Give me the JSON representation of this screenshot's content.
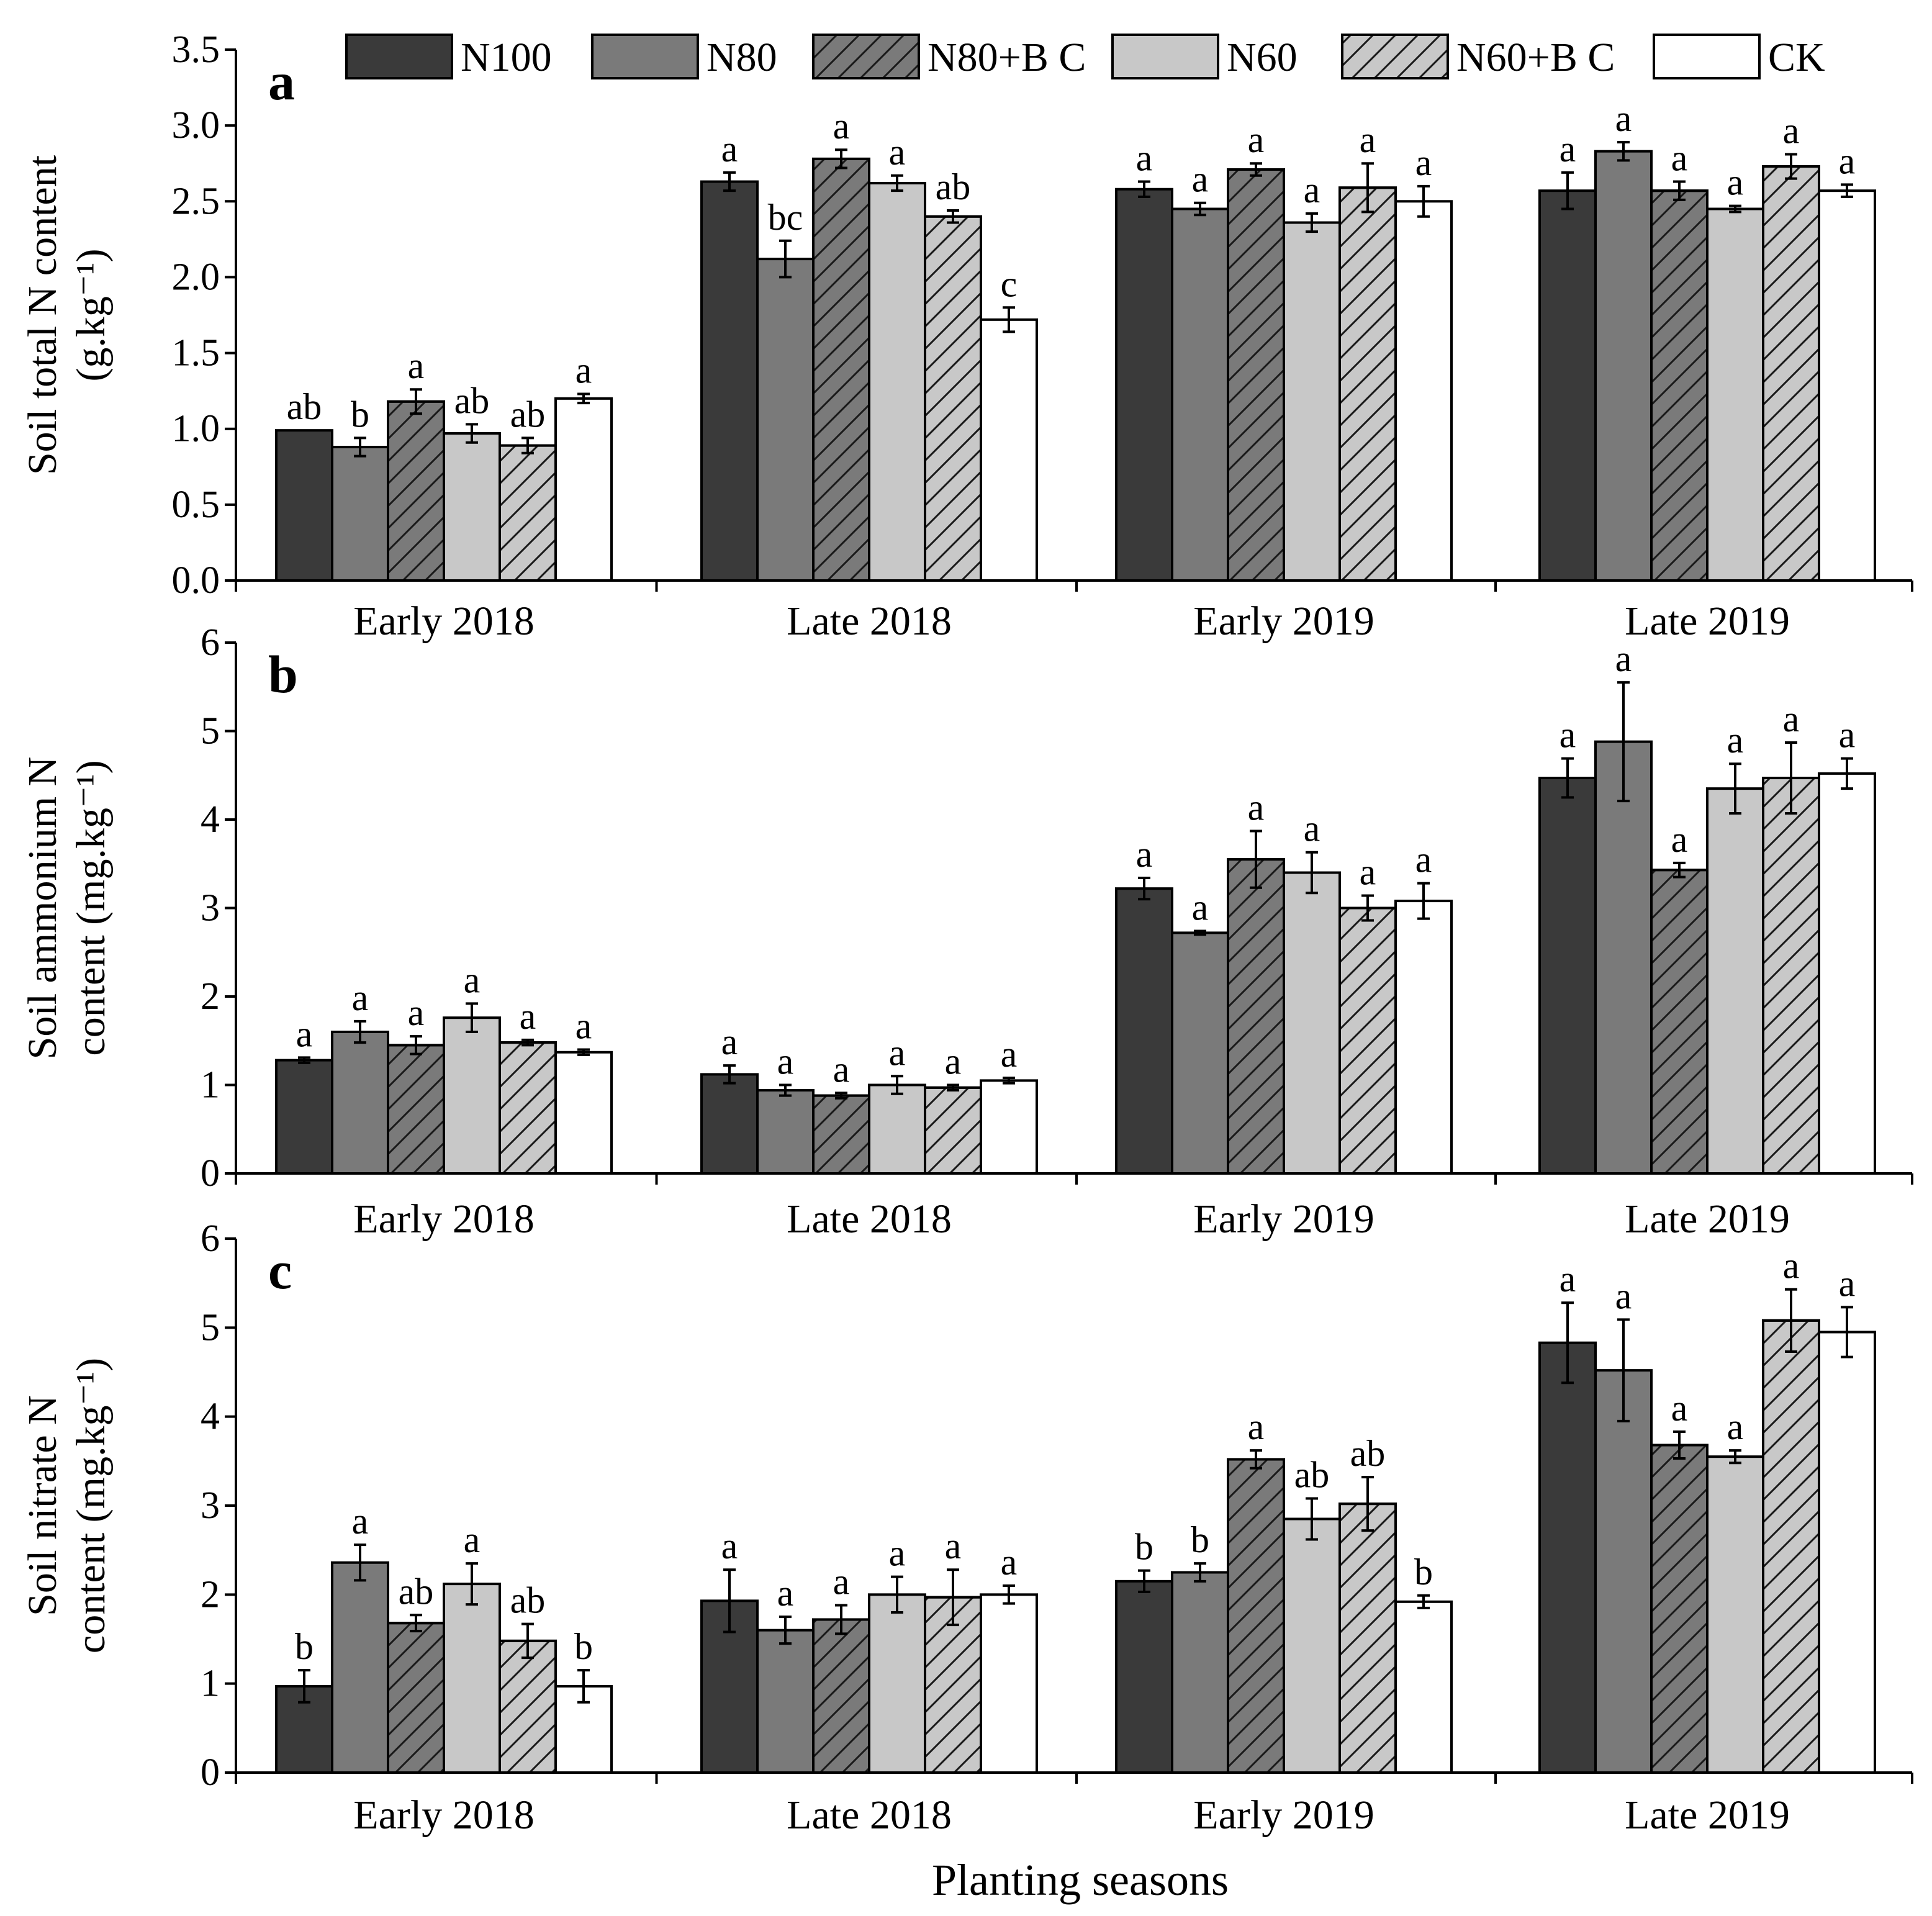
{
  "legend": [
    {
      "name": "N100",
      "fill": "#3a3a3a",
      "hatch": false
    },
    {
      "name": "N80",
      "fill": "#7a7a7a",
      "hatch": false
    },
    {
      "name": "N80+B C",
      "fill": "#7a7a7a",
      "hatch": true
    },
    {
      "name": "N60",
      "fill": "#c8c8c8",
      "hatch": false
    },
    {
      "name": "N60+B C",
      "fill": "#c8c8c8",
      "hatch": true
    },
    {
      "name": "CK",
      "fill": "#ffffff",
      "hatch": false
    }
  ],
  "xlabel": "Planting seasons",
  "chart_data": [
    {
      "type": "bar",
      "panel": "a",
      "ylabel": [
        "Soil total N content",
        "(g.kg⁻¹)"
      ],
      "ylim": [
        0,
        3.5
      ],
      "yticks": [
        "0.0",
        "0.5",
        "1.0",
        "1.5",
        "2.0",
        "2.5",
        "3.0",
        "3.5"
      ],
      "categories": [
        "Early 2018",
        "Late 2018",
        "Early 2019",
        "Late 2019"
      ],
      "series": [
        {
          "name": "N100",
          "values": [
            0.99,
            2.63,
            2.58,
            2.57
          ],
          "errors": [
            0.0,
            0.06,
            0.05,
            0.12
          ],
          "sig": [
            "ab",
            "a",
            "a",
            "a"
          ]
        },
        {
          "name": "N80",
          "values": [
            0.88,
            2.12,
            2.45,
            2.83
          ],
          "errors": [
            0.06,
            0.12,
            0.04,
            0.06
          ],
          "sig": [
            "b",
            "bc",
            "a",
            "a"
          ]
        },
        {
          "name": "N80+B C",
          "values": [
            1.18,
            2.78,
            2.71,
            2.57
          ],
          "errors": [
            0.08,
            0.06,
            0.04,
            0.06
          ],
          "sig": [
            "a",
            "a",
            "a",
            "a"
          ]
        },
        {
          "name": "N60",
          "values": [
            0.97,
            2.62,
            2.36,
            2.45
          ],
          "errors": [
            0.06,
            0.05,
            0.06,
            0.02
          ],
          "sig": [
            "ab",
            "a",
            "a",
            "a"
          ]
        },
        {
          "name": "N60+B C",
          "values": [
            0.89,
            2.4,
            2.59,
            2.73
          ],
          "errors": [
            0.05,
            0.04,
            0.16,
            0.08
          ],
          "sig": [
            "ab",
            "ab",
            "a",
            "a"
          ]
        },
        {
          "name": "CK",
          "values": [
            1.2,
            1.72,
            2.5,
            2.57
          ],
          "errors": [
            0.03,
            0.08,
            0.1,
            0.04
          ],
          "sig": [
            "a",
            "c",
            "a",
            "a"
          ]
        }
      ]
    },
    {
      "type": "bar",
      "panel": "b",
      "ylabel": [
        "Soil ammonium N",
        "content (mg.kg⁻¹)"
      ],
      "ylim": [
        0,
        6
      ],
      "yticks": [
        "0",
        "1",
        "2",
        "3",
        "4",
        "5",
        "6"
      ],
      "categories": [
        "Early 2018",
        "Late 2018",
        "Early 2019",
        "Late 2019"
      ],
      "series": [
        {
          "name": "N100",
          "values": [
            1.28,
            1.12,
            3.22,
            4.47
          ],
          "errors": [
            0.03,
            0.1,
            0.12,
            0.22
          ],
          "sig": [
            "a",
            "a",
            "a",
            "a"
          ]
        },
        {
          "name": "N80",
          "values": [
            1.6,
            0.94,
            2.72,
            4.88
          ],
          "errors": [
            0.12,
            0.06,
            0.02,
            0.67
          ],
          "sig": [
            "a",
            "a",
            "a",
            "a"
          ]
        },
        {
          "name": "N80+B C",
          "values": [
            1.45,
            0.88,
            3.55,
            3.43
          ],
          "errors": [
            0.1,
            0.03,
            0.32,
            0.08
          ],
          "sig": [
            "a",
            "a",
            "a",
            "a"
          ]
        },
        {
          "name": "N60",
          "values": [
            1.76,
            1.0,
            3.4,
            4.35
          ],
          "errors": [
            0.16,
            0.1,
            0.23,
            0.28
          ],
          "sig": [
            "a",
            "a",
            "a",
            "a"
          ]
        },
        {
          "name": "N60+B C",
          "values": [
            1.48,
            0.97,
            3.0,
            4.47
          ],
          "errors": [
            0.03,
            0.03,
            0.14,
            0.4
          ],
          "sig": [
            "a",
            "a",
            "a",
            "a"
          ]
        },
        {
          "name": "CK",
          "values": [
            1.37,
            1.05,
            3.08,
            4.52
          ],
          "errors": [
            0.03,
            0.03,
            0.2,
            0.17
          ],
          "sig": [
            "a",
            "a",
            "a",
            "a"
          ]
        }
      ]
    },
    {
      "type": "bar",
      "panel": "c",
      "ylabel": [
        "Soil nitrate N",
        "content (mg.kg⁻¹)"
      ],
      "ylim": [
        0,
        6
      ],
      "yticks": [
        "0",
        "1",
        "2",
        "3",
        "4",
        "5",
        "6"
      ],
      "categories": [
        "Early 2018",
        "Late 2018",
        "Early 2019",
        "Late 2019"
      ],
      "series": [
        {
          "name": "N100",
          "values": [
            0.97,
            1.93,
            2.15,
            4.83
          ],
          "errors": [
            0.18,
            0.35,
            0.12,
            0.45
          ],
          "sig": [
            "b",
            "a",
            "b",
            "a"
          ]
        },
        {
          "name": "N80",
          "values": [
            2.36,
            1.6,
            2.25,
            4.52
          ],
          "errors": [
            0.2,
            0.15,
            0.1,
            0.57
          ],
          "sig": [
            "a",
            "a",
            "b",
            "a"
          ]
        },
        {
          "name": "N80+B C",
          "values": [
            1.68,
            1.72,
            3.52,
            3.68
          ],
          "errors": [
            0.09,
            0.16,
            0.1,
            0.15
          ],
          "sig": [
            "ab",
            "a",
            "a",
            "a"
          ]
        },
        {
          "name": "N60",
          "values": [
            2.12,
            2.0,
            2.85,
            3.55
          ],
          "errors": [
            0.23,
            0.2,
            0.23,
            0.07
          ],
          "sig": [
            "a",
            "a",
            "ab",
            "a"
          ]
        },
        {
          "name": "N60+B C",
          "values": [
            1.48,
            1.97,
            3.02,
            5.08
          ],
          "errors": [
            0.19,
            0.31,
            0.3,
            0.35
          ],
          "sig": [
            "ab",
            "a",
            "ab",
            "a"
          ]
        },
        {
          "name": "CK",
          "values": [
            0.97,
            2.0,
            1.92,
            4.95
          ],
          "errors": [
            0.18,
            0.1,
            0.07,
            0.28
          ],
          "sig": [
            "b",
            "a",
            "b",
            "a"
          ]
        }
      ]
    }
  ]
}
